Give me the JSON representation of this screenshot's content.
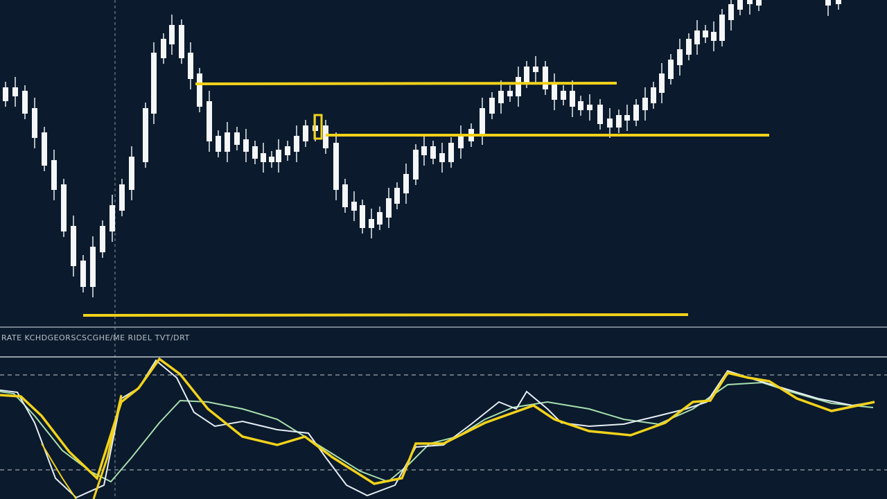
{
  "indicator_panel": {
    "label": "RATE KCHDGEORSCSCGHE/ME RIDEL TVT/DRT"
  }
}
